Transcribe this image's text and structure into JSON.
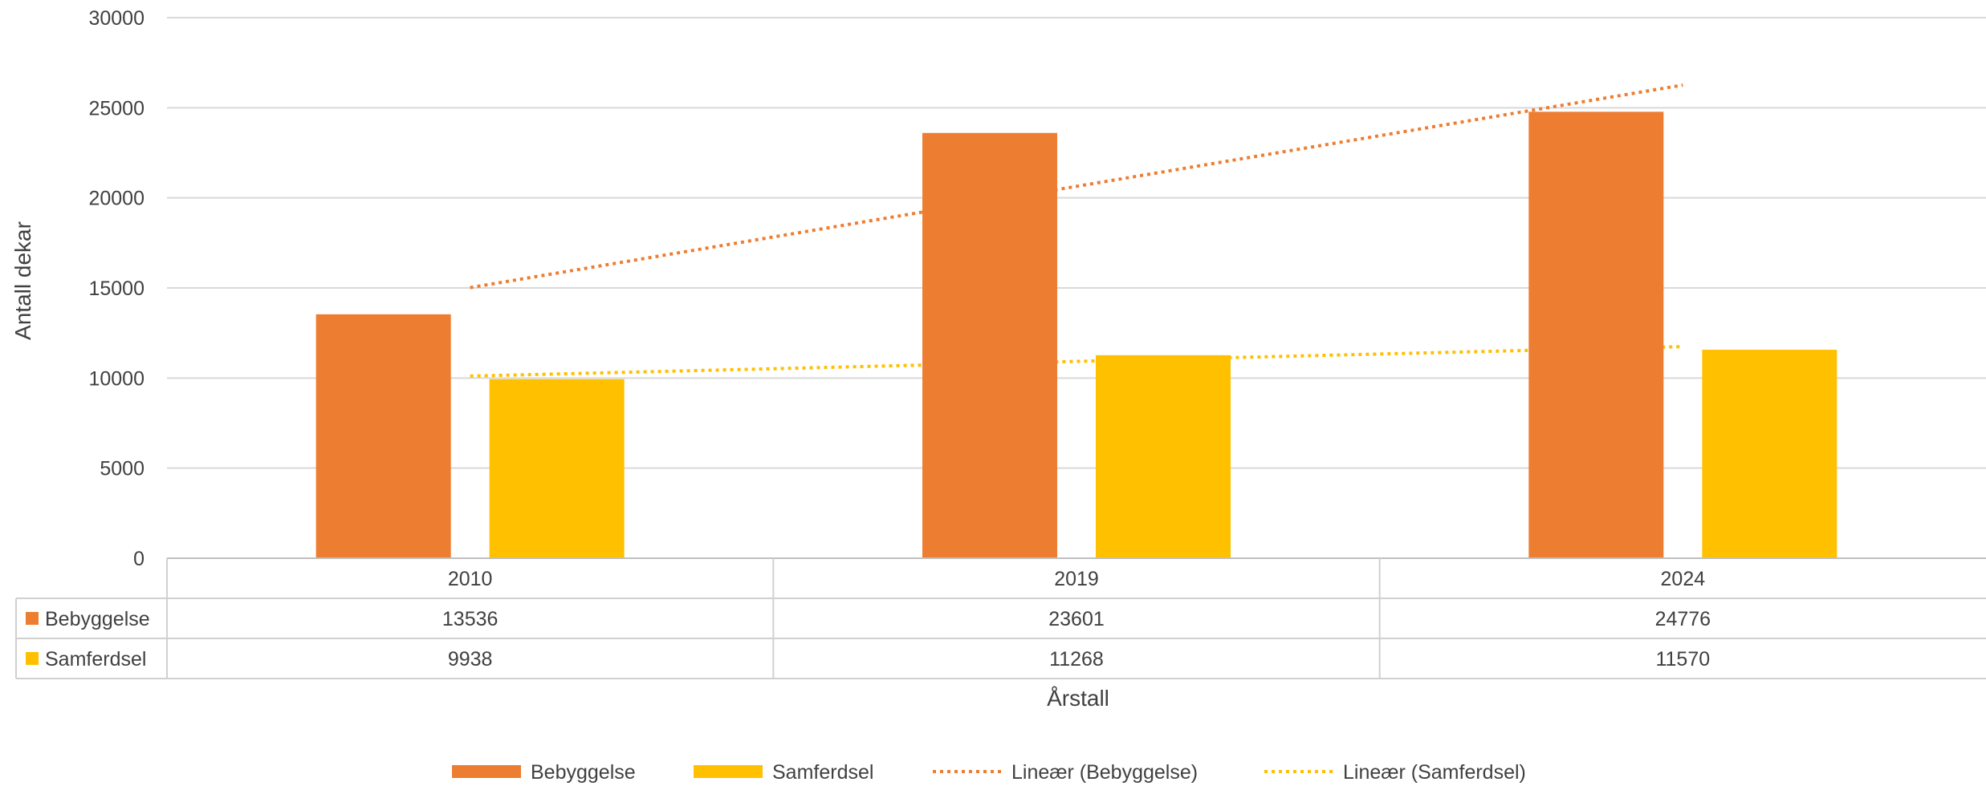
{
  "chart_data": {
    "type": "bar",
    "categories": [
      "2010",
      "2019",
      "2024"
    ],
    "series": [
      {
        "name": "Bebyggelse",
        "values": [
          13536,
          23601,
          24776
        ],
        "color": "#ED7D31"
      },
      {
        "name": "Samferdsel",
        "values": [
          9938,
          11268,
          11570
        ],
        "color": "#FFC000"
      }
    ],
    "trendlines": [
      {
        "name": "Lineær (Bebyggelse)",
        "series": "Bebyggelse",
        "type": "linear",
        "color": "#ED7D31",
        "style": "dotted"
      },
      {
        "name": "Lineær (Samferdsel)",
        "series": "Samferdsel",
        "type": "linear",
        "color": "#FFC000",
        "style": "dotted"
      }
    ],
    "xlabel": "Årstall",
    "ylabel": "Antall dekar",
    "ylim": [
      0,
      30000
    ],
    "yticks": [
      0,
      5000,
      10000,
      15000,
      20000,
      25000,
      30000
    ],
    "grid": true,
    "data_table": true,
    "legend_position": "bottom"
  }
}
